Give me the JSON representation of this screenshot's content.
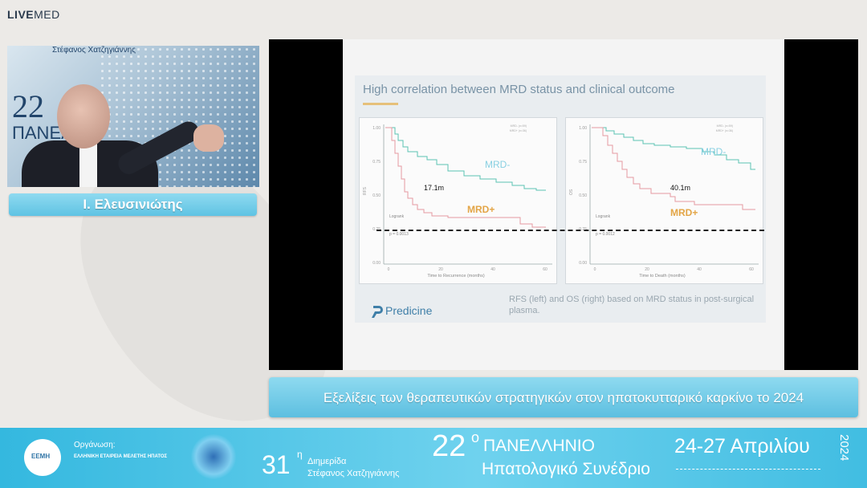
{
  "brand": {
    "live": "LIVE",
    "med": "MED"
  },
  "speaker": {
    "name": "Ι. Ελευσινιώτης",
    "backdrop_number": "22",
    "backdrop_line1": "ΠΑΝΕΛ",
    "backdrop_line2": "Στέφανος Χατζηγιάννης"
  },
  "slide": {
    "title": "High correlation between MRD status and clinical outcome",
    "left_panel": {
      "curve_label_top": "MRD-",
      "curve_label_bottom": "MRD+",
      "median_label": "17.1m",
      "y_axis_label": "RFS",
      "x_axis_label": "Time to Recurrence (months)",
      "logrank_label": "Logrank",
      "p_value": "p = 0.0013",
      "y_ticks": [
        "1.00",
        "0.75",
        "0.50",
        "0.25",
        "0.00"
      ],
      "x_ticks": [
        "0",
        "20",
        "40",
        "60"
      ],
      "legend": [
        "MRD- (n=59)",
        "MRD+ (n=36)"
      ]
    },
    "right_panel": {
      "curve_label_top": "MRD-",
      "curve_label_bottom": "MRD+",
      "median_label": "40.1m",
      "y_axis_label": "OS",
      "x_axis_label": "Time to Death (months)",
      "logrank_label": "Logrank",
      "p_value": "p = 0.0012",
      "y_ticks": [
        "1.00",
        "0.75",
        "0.50",
        "0.25",
        "0.00"
      ],
      "x_ticks": [
        "0",
        "20",
        "40",
        "60"
      ],
      "legend": [
        "MRD- (n=59)",
        "MRD+ (n=36)"
      ]
    },
    "caption": "RFS (left) and OS (right) based on MRD status in post-surgical plasma.",
    "logo": "Predicine",
    "colors": {
      "mrd_neg": "#5bc3b3",
      "mrd_pos": "#e69aa0",
      "label_neg": "#88d0e2",
      "label_pos": "#e3a546"
    }
  },
  "topic": "Εξελίξεις των θεραπευτικών στρατηγικών στον ηπατοκυτταρικό καρκίνο το 2024",
  "footer": {
    "logo_text": "ΕΕΜΗ",
    "organizer_label": "Οργάνωση:",
    "organizer": "ΕΛΛΗΝΙΚΗ ΕΤΑΙΡΕΙΑ ΜΕΛΕΤΗΣ ΗΠΑΤΟΣ",
    "num31": "31",
    "num31_sup": "η",
    "dimeris": "Διημερίδα",
    "dimeris_name": "Στέφανος Χατζηγιάννης",
    "num22": "22",
    "num22_sup": "ο",
    "conf_line1": "ΠΑΝΕΛΛΗΝΙΟ",
    "conf_line2": "Ηπατολογικό Συνέδριο",
    "dates": "24-27 Απριλίου",
    "year": "2024"
  }
}
